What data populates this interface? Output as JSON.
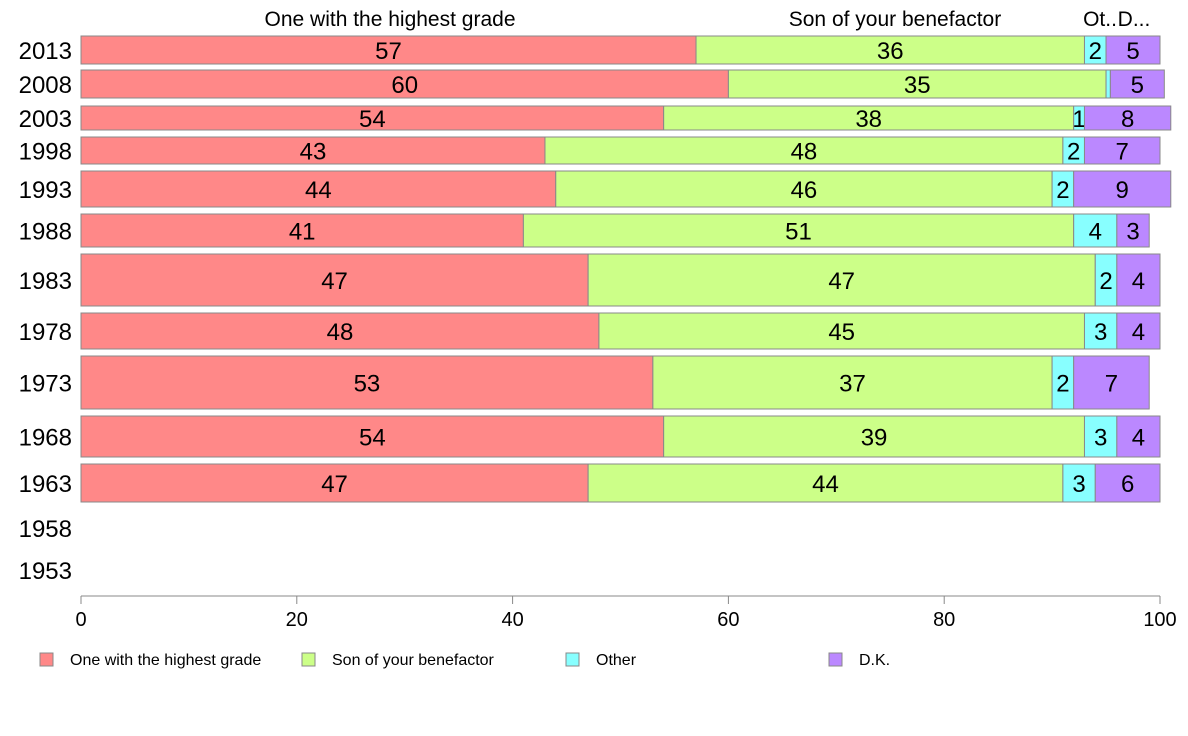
{
  "chart_data": {
    "type": "bar",
    "orientation": "horizontal",
    "stacked": true,
    "categories": [
      "2013",
      "2008",
      "2003",
      "1998",
      "1993",
      "1988",
      "1983",
      "1978",
      "1973",
      "1968",
      "1963",
      "1958",
      "1953"
    ],
    "series": [
      {
        "name": "One with the highest grade",
        "color": "#ff8888",
        "values": [
          57,
          60,
          54,
          43,
          44,
          41,
          47,
          48,
          53,
          54,
          47,
          null,
          null
        ]
      },
      {
        "name": "Son of your benefactor",
        "color": "#ccff88",
        "values": [
          36,
          35,
          38,
          48,
          46,
          51,
          47,
          45,
          37,
          39,
          44,
          null,
          null
        ]
      },
      {
        "name": "Other",
        "color": "#88ffff",
        "values": [
          2,
          0.4,
          1,
          2,
          2,
          4,
          2,
          3,
          2,
          3,
          3,
          null,
          null
        ]
      },
      {
        "name": "D.K.",
        "color": "#bb88ff",
        "values": [
          5,
          5,
          8,
          7,
          9,
          3,
          4,
          4,
          7,
          4,
          6,
          null,
          null
        ]
      }
    ],
    "value_labels": [
      [
        "57",
        "36",
        "2",
        "5"
      ],
      [
        "60",
        "35",
        "",
        "5"
      ],
      [
        "54",
        "38",
        "1",
        "8"
      ],
      [
        "43",
        "48",
        "2",
        "7"
      ],
      [
        "44",
        "46",
        "2",
        "9"
      ],
      [
        "41",
        "51",
        "4",
        "3"
      ],
      [
        "47",
        "47",
        "2",
        "4"
      ],
      [
        "48",
        "45",
        "3",
        "4"
      ],
      [
        "53",
        "37",
        "2",
        "7"
      ],
      [
        "54",
        "39",
        "3",
        "4"
      ],
      [
        "47",
        "44",
        "3",
        "6"
      ],
      [
        "",
        "",
        "",
        ""
      ],
      [
        "",
        "",
        "",
        ""
      ]
    ],
    "column_headers": [
      "One with the highest grade",
      "Son of your benefactor",
      "Ot..",
      "D..."
    ],
    "xlim": [
      0,
      100
    ],
    "xticks": [
      "0",
      "20",
      "40",
      "60",
      "80",
      "100"
    ],
    "grid": false,
    "legend_position": "bottom"
  }
}
